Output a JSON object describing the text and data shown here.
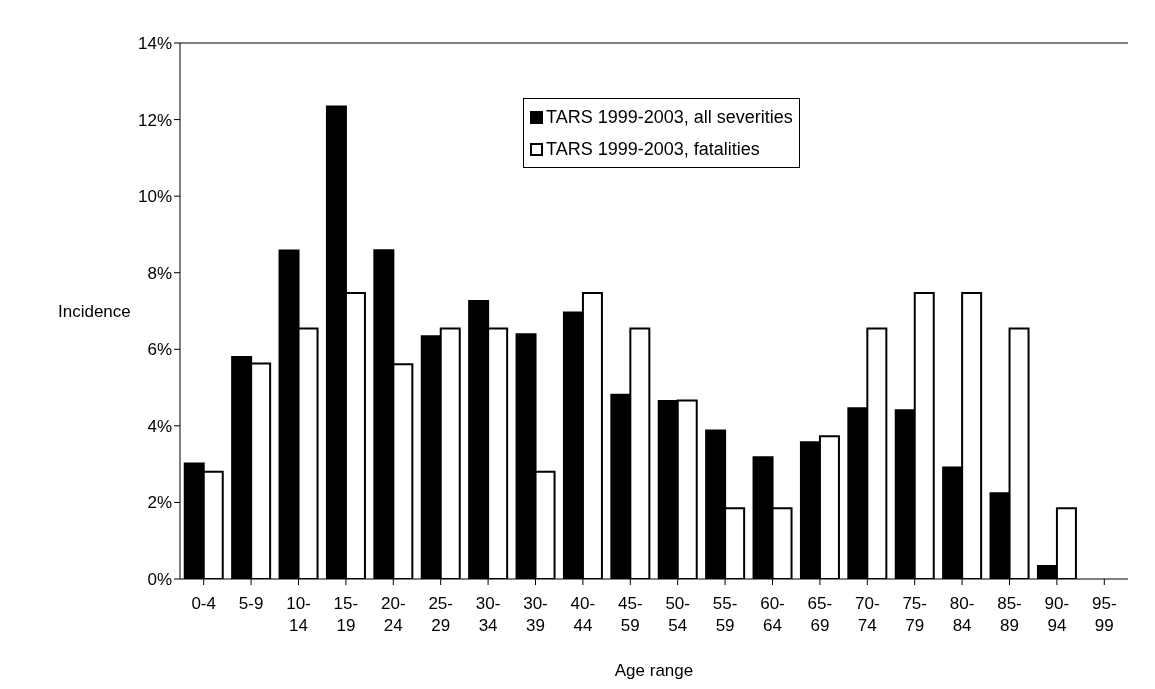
{
  "chart_data": {
    "type": "bar",
    "xlabel": "Age range",
    "ylabel": "Incidence",
    "categories": [
      "0-4",
      "5-9",
      "10-14",
      "15-19",
      "20-24",
      "25-29",
      "30-34",
      "30-39",
      "40-44",
      "45-59",
      "50-54",
      "55-59",
      "60-64",
      "65-69",
      "70-74",
      "75-79",
      "80-84",
      "85-89",
      "90-94",
      "95-99"
    ],
    "series": [
      {
        "name": "TARS 1999-2003, all severities",
        "color": "#000000",
        "values": [
          3.02,
          5.8,
          8.58,
          12.34,
          8.59,
          6.34,
          7.26,
          6.39,
          6.96,
          4.81,
          4.65,
          3.88,
          3.18,
          3.57,
          4.46,
          4.41,
          2.91,
          2.24,
          0.34,
          0
        ]
      },
      {
        "name": "TARS 1999-2003, fatalities",
        "color": "#ffffff",
        "values": [
          2.8,
          5.63,
          6.54,
          7.47,
          5.61,
          6.54,
          6.54,
          2.8,
          7.47,
          6.54,
          4.66,
          1.85,
          1.85,
          3.73,
          6.54,
          7.47,
          7.47,
          6.54,
          1.85,
          0
        ]
      }
    ],
    "ylim": [
      0,
      14
    ],
    "yticks": [
      {
        "value": 0,
        "label": "0%"
      },
      {
        "value": 2,
        "label": "2%"
      },
      {
        "value": 4,
        "label": "4%"
      },
      {
        "value": 6,
        "label": "6%"
      },
      {
        "value": 8,
        "label": "8%"
      },
      {
        "value": 10,
        "label": "10%"
      },
      {
        "value": 12,
        "label": "12%"
      },
      {
        "value": 14,
        "label": "14%"
      }
    ],
    "grid": false,
    "legend": "top"
  }
}
